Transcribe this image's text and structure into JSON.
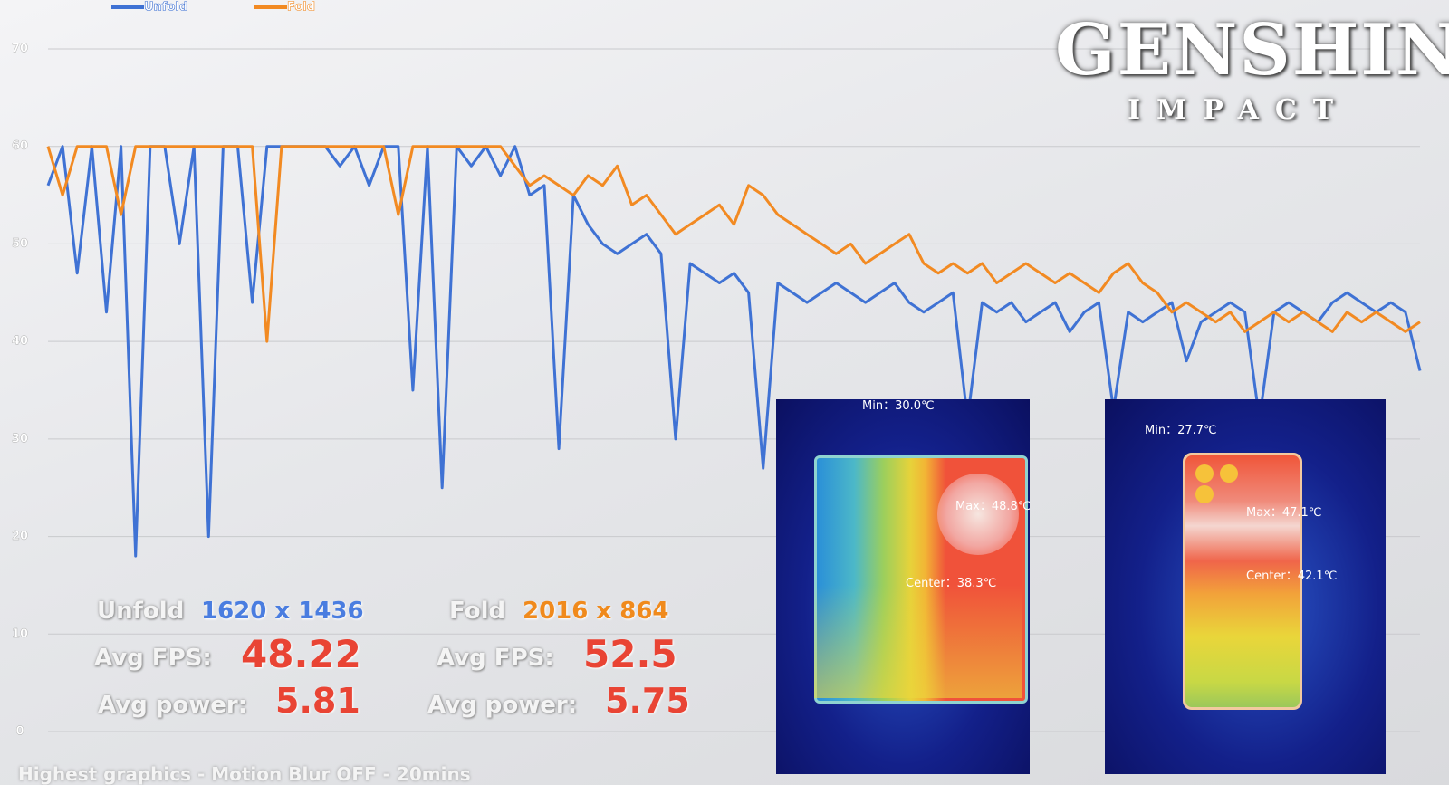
{
  "chart_data": {
    "type": "line",
    "ylim": [
      0,
      70
    ],
    "yticks": [
      0,
      10,
      20,
      30,
      40,
      50,
      60,
      70
    ],
    "grid": true,
    "series": [
      {
        "name": "Unfold",
        "color": "#3f72d4",
        "values": [
          56,
          60,
          47,
          60,
          43,
          60,
          18,
          60,
          60,
          50,
          60,
          20,
          60,
          60,
          44,
          60,
          60,
          60,
          60,
          60,
          58,
          60,
          56,
          60,
          60,
          35,
          60,
          25,
          60,
          58,
          60,
          57,
          60,
          55,
          56,
          29,
          55,
          52,
          50,
          49,
          50,
          51,
          49,
          30,
          48,
          47,
          46,
          47,
          45,
          27,
          46,
          45,
          44,
          45,
          46,
          45,
          44,
          45,
          46,
          44,
          43,
          44,
          45,
          32,
          44,
          43,
          44,
          42,
          43,
          44,
          41,
          43,
          44,
          33,
          43,
          42,
          43,
          44,
          38,
          42,
          43,
          44,
          43,
          32,
          43,
          44,
          43,
          42,
          44,
          45,
          44,
          43,
          44,
          43,
          37
        ]
      },
      {
        "name": "Fold",
        "color": "#f28a22",
        "values": [
          60,
          55,
          60,
          60,
          60,
          53,
          60,
          60,
          60,
          60,
          60,
          60,
          60,
          60,
          60,
          40,
          60,
          60,
          60,
          60,
          60,
          60,
          60,
          60,
          53,
          60,
          60,
          60,
          60,
          60,
          60,
          60,
          58,
          56,
          57,
          56,
          55,
          57,
          56,
          58,
          54,
          55,
          53,
          51,
          52,
          53,
          54,
          52,
          56,
          55,
          53,
          52,
          51,
          50,
          49,
          50,
          48,
          49,
          50,
          51,
          48,
          47,
          48,
          47,
          48,
          46,
          47,
          48,
          47,
          46,
          47,
          46,
          45,
          47,
          48,
          46,
          45,
          43,
          44,
          43,
          42,
          43,
          41,
          42,
          43,
          42,
          43,
          42,
          41,
          43,
          42,
          43,
          42,
          41,
          42
        ]
      }
    ]
  },
  "stats": {
    "unfold": {
      "label": "Unfold",
      "resolution": "1620 x 1436",
      "fps_label": "Avg FPS:",
      "fps": 48.22,
      "power_label": "Avg power:",
      "power": 5.81
    },
    "fold": {
      "label": "Fold",
      "resolution": "2016 x 864",
      "fps_label": "Avg FPS:",
      "fps": 52.5,
      "power_label": "Avg power:",
      "power": 5.75
    }
  },
  "thermal": [
    {
      "min": "Min：30.0℃",
      "max": "Max：48.8℃",
      "center": "Center：38.3℃"
    },
    {
      "min": "Min：27.7℃",
      "max": "Max：47.1℃",
      "center": "Center：42.1℃"
    }
  ],
  "logo": {
    "title": "GENSHIN",
    "subtitle": "IMPACT"
  },
  "footer": "Highest graphics - Motion Blur OFF - 20mins"
}
